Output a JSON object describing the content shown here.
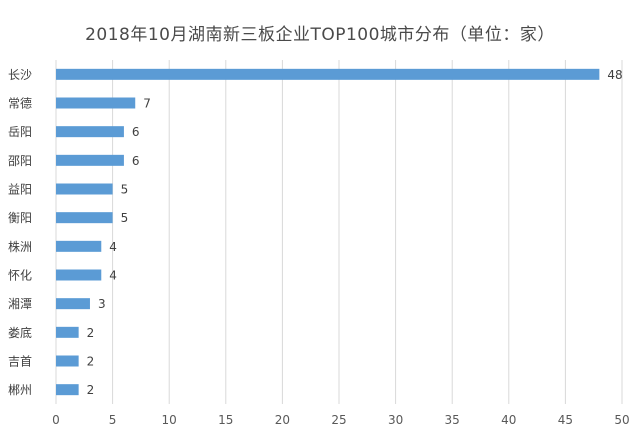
{
  "chart_data": {
    "type": "bar",
    "orientation": "horizontal",
    "title": "2018年10月湖南新三板企业TOP100城市分布（单位：家）",
    "xlabel": "",
    "ylabel": "",
    "categories": [
      "长沙",
      "常德",
      "岳阳",
      "邵阳",
      "益阳",
      "衡阳",
      "株洲",
      "怀化",
      "湘潭",
      "娄底",
      "吉首",
      "郴州"
    ],
    "values": [
      48,
      7,
      6,
      6,
      5,
      5,
      4,
      4,
      3,
      2,
      2,
      2
    ],
    "xlim": [
      0,
      50
    ],
    "xticks": [
      0,
      5,
      10,
      15,
      20,
      25,
      30,
      35,
      40,
      45,
      50
    ],
    "grid": "vertical",
    "legend": "none",
    "data_labels": true,
    "bar_color": "#5b9bd5"
  }
}
